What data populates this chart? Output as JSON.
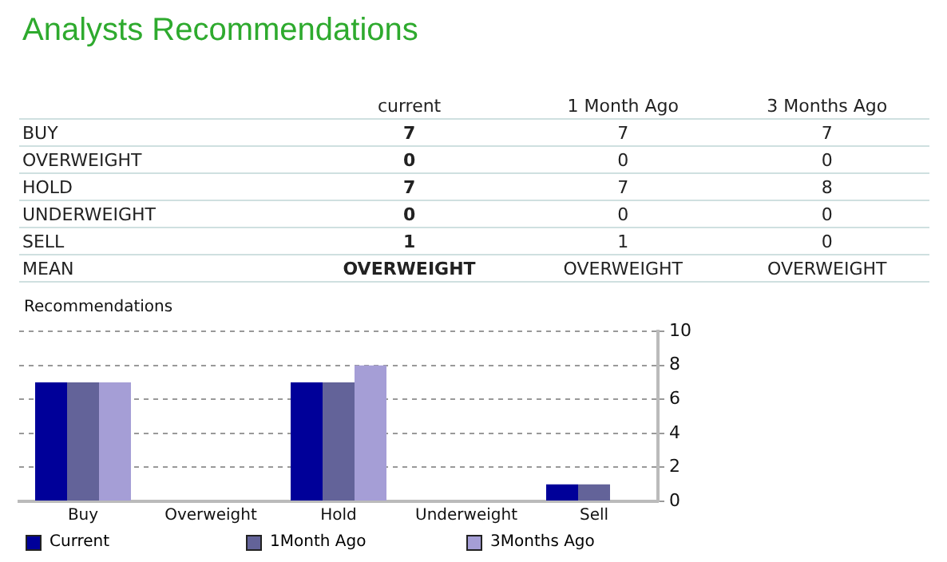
{
  "chart_data": [
    {
      "type": "other",
      "title": "Analysts Recommendations",
      "annotations": [
        "current",
        "1 Month Ago",
        "3 Months Ago",
        "BUY",
        "7",
        "7",
        "7",
        "OVERWEIGHT",
        "0",
        "0",
        "0",
        "HOLD",
        "7",
        "7",
        "8",
        "UNDERWEIGHT",
        "0",
        "0",
        "0",
        "SELL",
        "1",
        "1",
        "0",
        "MEAN",
        "OVERWEIGHT",
        "OVERWEIGHT",
        "OVERWEIGHT"
      ]
    },
    {
      "type": "bar",
      "title": "Recommendations",
      "categories": [
        "Buy",
        "Overweight",
        "Hold",
        "Underweight",
        "Sell"
      ],
      "series": [
        {
          "name": "Current",
          "color": "#000099",
          "values": [
            7,
            0,
            7,
            0,
            1
          ]
        },
        {
          "name": "1Month Ago",
          "color": "#636399",
          "values": [
            7,
            0,
            7,
            0,
            1
          ]
        },
        {
          "name": "3Months Ago",
          "color": "#a59ed6",
          "values": [
            7,
            0,
            8,
            0,
            0
          ]
        }
      ],
      "ylim": [
        0,
        10
      ],
      "yticks": [
        0,
        2,
        4,
        6,
        8,
        10
      ],
      "grid": "y",
      "legend": "bottom"
    }
  ]
}
